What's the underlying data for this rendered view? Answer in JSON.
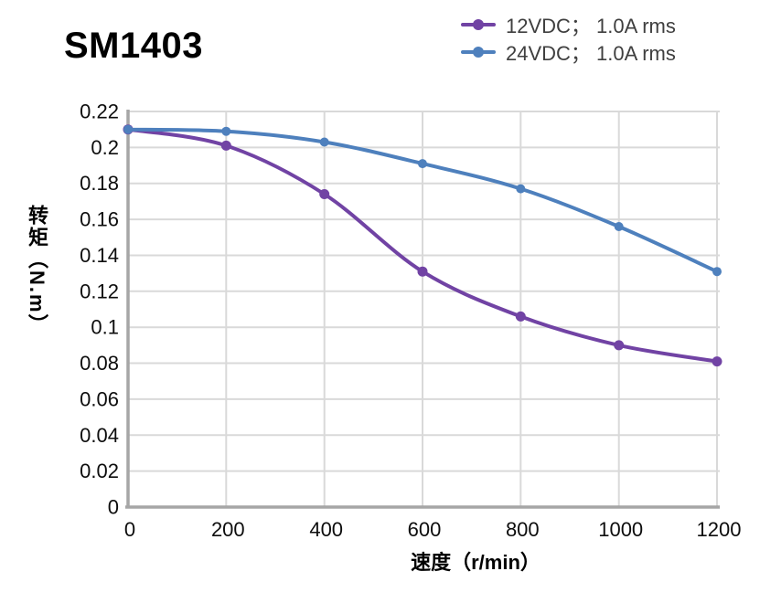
{
  "header": {
    "title": "SM1403"
  },
  "axis_colors": {
    "grid": "#D9D9D9",
    "axis": "#A6A6A6",
    "tick_text": "#0d0d0d"
  },
  "chart_data": {
    "type": "line",
    "title": "SM1403",
    "xlabel": "速度（r/min）",
    "ylabel": "转矩（N.m）",
    "xlim": [
      0,
      1200
    ],
    "ylim": [
      0,
      0.22
    ],
    "grid": true,
    "legend_position": "top-right",
    "x": [
      0,
      200,
      400,
      600,
      800,
      1000,
      1200
    ],
    "x_tick_labels": [
      "0",
      "200",
      "400",
      "600",
      "800",
      "1000",
      "1200"
    ],
    "y_ticks": [
      0,
      0.02,
      0.04,
      0.06,
      0.08,
      0.1,
      0.12,
      0.14,
      0.16,
      0.18,
      0.2,
      0.22
    ],
    "y_tick_labels": [
      "0",
      "0.02",
      "0.04",
      "0.06",
      "0.08",
      "0.1",
      "0.12",
      "0.14",
      "0.16",
      "0.18",
      "0.2",
      "0.22"
    ],
    "series": [
      {
        "name": "12VDC； 1.0A rms",
        "color": "#7143A4",
        "marker": "circle",
        "values": [
          0.21,
          0.201,
          0.174,
          0.131,
          0.106,
          0.09,
          0.081
        ]
      },
      {
        "name": "24VDC； 1.0A rms",
        "color": "#4E80BD",
        "marker": "circle",
        "values": [
          0.21,
          0.209,
          0.203,
          0.191,
          0.177,
          0.156,
          0.131
        ]
      }
    ]
  }
}
